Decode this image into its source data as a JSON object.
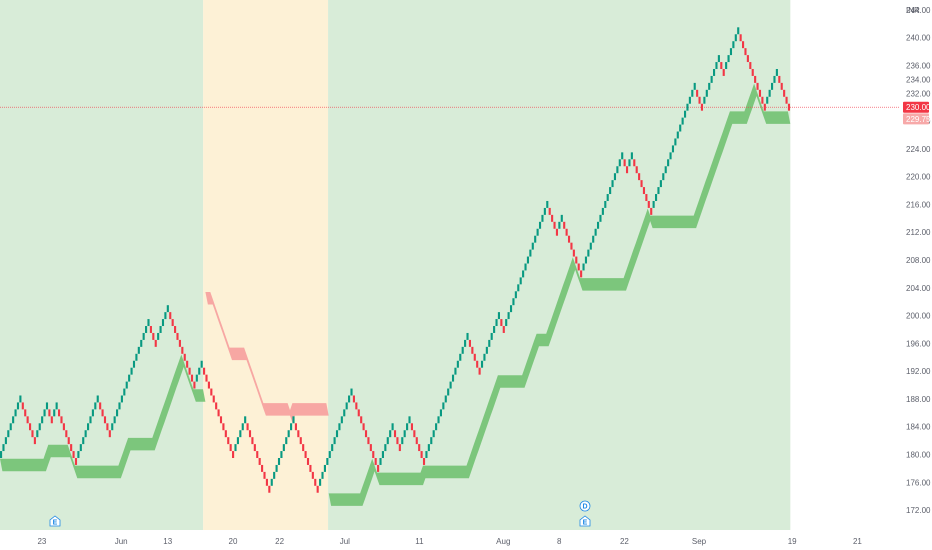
{
  "chart_data": {
    "type": "renko",
    "currency": "INR",
    "ylim": [
      170,
      245
    ],
    "y_ticks": [
      "172.00",
      "176.00",
      "180.00",
      "184.00",
      "188.00",
      "192.00",
      "196.00",
      "200.00",
      "204.00",
      "208.00",
      "212.00",
      "216.00",
      "220.00",
      "224.00",
      "228.00",
      "232.00",
      "234.00",
      "236.00",
      "240.00",
      "244.00"
    ],
    "x_ticks": [
      {
        "label": "23",
        "x": 0.045
      },
      {
        "label": "Jun",
        "x": 0.13
      },
      {
        "label": "13",
        "x": 0.18
      },
      {
        "label": "20",
        "x": 0.25
      },
      {
        "label": "22",
        "x": 0.3
      },
      {
        "label": "Jul",
        "x": 0.37
      },
      {
        "label": "11",
        "x": 0.45
      },
      {
        "label": "Aug",
        "x": 0.54
      },
      {
        "label": "8",
        "x": 0.6
      },
      {
        "label": "22",
        "x": 0.67
      },
      {
        "label": "Sep",
        "x": 0.75
      },
      {
        "label": "19",
        "x": 0.85
      },
      {
        "label": "21",
        "x": 0.92
      }
    ],
    "last_price_label": "230.00",
    "last_price": 230.0,
    "second_price_label": "229.75",
    "second_price": 229.75,
    "colors": {
      "up": "#089981",
      "down": "#f23645",
      "bull_bg": "#d8ecd8",
      "bear_bg": "#fdf1d6",
      "bull_band": "#6cbf6c",
      "bear_band": "#f69a9a",
      "price_label": "#f23645",
      "price_label2": "#f7a9a9"
    },
    "background_regions": [
      {
        "from": 0.0,
        "to": 0.218,
        "state": "bull"
      },
      {
        "from": 0.218,
        "to": 0.352,
        "state": "bear"
      },
      {
        "from": 0.352,
        "to": 0.848,
        "state": "bull"
      }
    ],
    "bricks": [
      180,
      181,
      182,
      183,
      184,
      185,
      186,
      187,
      188,
      187,
      186,
      185,
      184,
      183,
      182,
      183,
      184,
      185,
      186,
      187,
      186,
      185,
      186,
      187,
      186,
      185,
      184,
      183,
      182,
      181,
      180,
      179,
      180,
      181,
      182,
      183,
      184,
      185,
      186,
      187,
      188,
      187,
      186,
      185,
      184,
      183,
      184,
      185,
      186,
      187,
      188,
      189,
      190,
      191,
      192,
      193,
      194,
      195,
      196,
      197,
      198,
      199,
      198,
      197,
      196,
      197,
      198,
      199,
      200,
      201,
      200,
      199,
      198,
      197,
      196,
      195,
      194,
      193,
      192,
      191,
      190,
      191,
      192,
      193,
      192,
      191,
      190,
      189,
      188,
      187,
      186,
      185,
      184,
      183,
      182,
      181,
      180,
      181,
      182,
      183,
      184,
      185,
      184,
      183,
      182,
      181,
      180,
      179,
      178,
      177,
      176,
      175,
      176,
      177,
      178,
      179,
      180,
      181,
      182,
      183,
      184,
      185,
      184,
      183,
      182,
      181,
      180,
      179,
      178,
      177,
      176,
      175,
      176,
      177,
      178,
      179,
      180,
      181,
      182,
      183,
      184,
      185,
      186,
      187,
      188,
      189,
      188,
      187,
      186,
      185,
      184,
      183,
      182,
      181,
      180,
      179,
      178,
      179,
      180,
      181,
      182,
      183,
      184,
      183,
      182,
      181,
      182,
      183,
      184,
      185,
      184,
      183,
      182,
      181,
      180,
      179,
      180,
      181,
      182,
      183,
      184,
      185,
      186,
      187,
      188,
      189,
      190,
      191,
      192,
      193,
      194,
      195,
      196,
      197,
      196,
      195,
      194,
      193,
      192,
      193,
      194,
      195,
      196,
      197,
      198,
      199,
      200,
      199,
      198,
      199,
      200,
      201,
      202,
      203,
      204,
      205,
      206,
      207,
      208,
      209,
      210,
      211,
      212,
      213,
      214,
      215,
      216,
      215,
      214,
      213,
      212,
      213,
      214,
      213,
      212,
      211,
      210,
      209,
      208,
      207,
      206,
      207,
      208,
      209,
      210,
      211,
      212,
      213,
      214,
      215,
      216,
      217,
      218,
      219,
      220,
      221,
      222,
      223,
      222,
      221,
      222,
      223,
      222,
      221,
      220,
      219,
      218,
      217,
      216,
      215,
      216,
      217,
      218,
      219,
      220,
      221,
      222,
      223,
      224,
      225,
      226,
      227,
      228,
      229,
      230,
      231,
      232,
      233,
      232,
      231,
      230,
      231,
      232,
      233,
      234,
      235,
      236,
      237,
      236,
      235,
      236,
      237,
      238,
      239,
      240,
      241,
      240,
      239,
      238,
      237,
      236,
      235,
      234,
      233,
      232,
      231,
      230,
      231,
      232,
      233,
      234,
      235,
      234,
      233,
      232,
      231,
      230
    ]
  }
}
